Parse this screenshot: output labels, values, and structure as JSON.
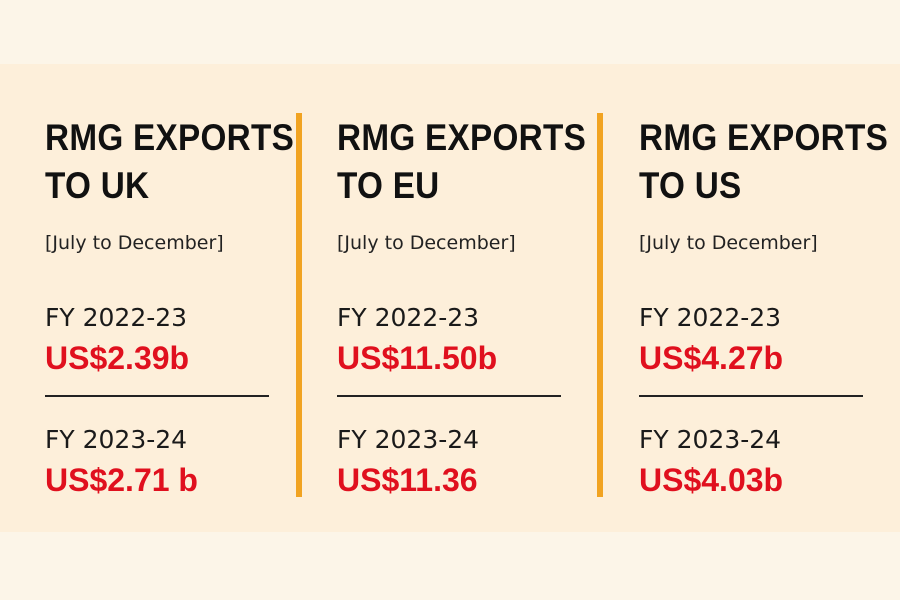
{
  "panels": [
    {
      "title_line1": "RMG EXPORTS",
      "title_line2": "TO UK",
      "period": "[July to December]",
      "rows": [
        {
          "fy": "FY 2022-23",
          "value": "US$2.39b"
        },
        {
          "fy": "FY 2023-24",
          "value": "US$2.71 b"
        }
      ]
    },
    {
      "title_line1": "RMG EXPORTS",
      "title_line2": "TO EU",
      "period": "[July to December]",
      "rows": [
        {
          "fy": "FY 2022-23",
          "value": "US$11.50b"
        },
        {
          "fy": "FY 2023-24",
          "value": "US$11.36"
        }
      ]
    },
    {
      "title_line1": "RMG EXPORTS",
      "title_line2": "TO US",
      "period": "[July to December]",
      "rows": [
        {
          "fy": "FY 2022-23",
          "value": "US$4.27b"
        },
        {
          "fy": "FY 2023-24",
          "value": "US$4.03b"
        }
      ]
    }
  ],
  "colors": {
    "page_background": "#fcf5e8",
    "panel_background": "#fdefda",
    "value_red": "#e0101e",
    "separator_orange": "#f1a321",
    "text_dark": "#111111"
  }
}
